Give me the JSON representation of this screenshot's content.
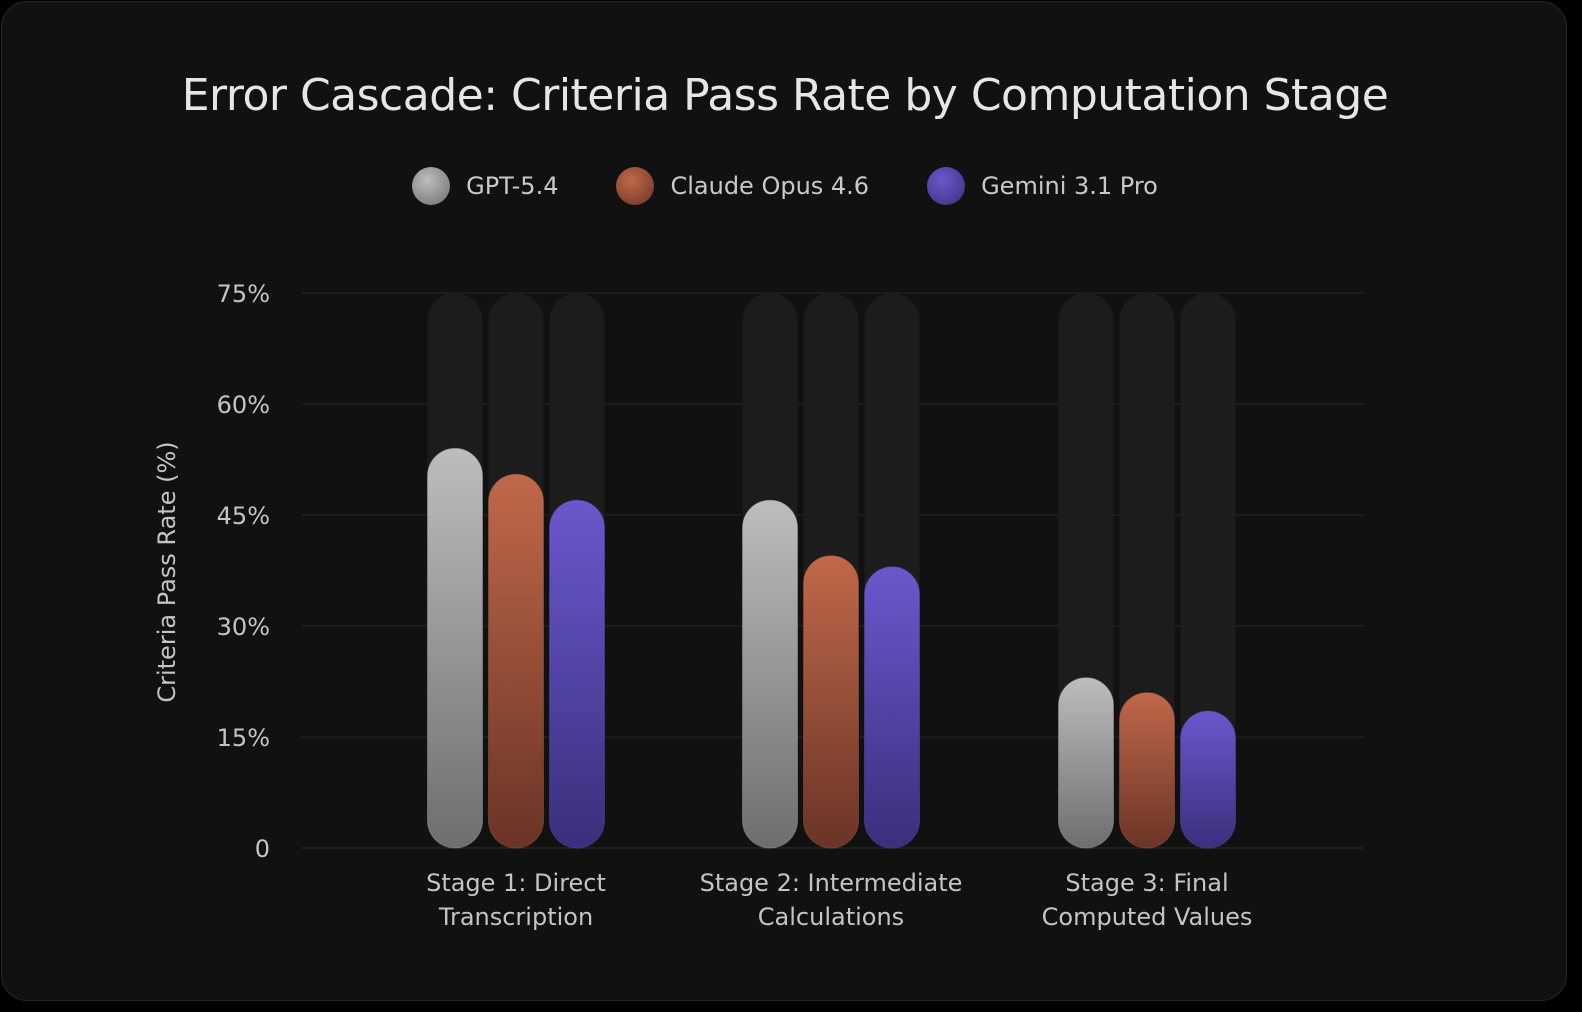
{
  "chart_data": {
    "type": "bar",
    "title": "Error Cascade: Criteria Pass Rate by Computation Stage",
    "xlabel": "",
    "ylabel": "Criteria Pass Rate (%)",
    "ylim": [
      0,
      75
    ],
    "yticks": [
      0,
      15,
      30,
      45,
      60,
      75
    ],
    "ytick_labels": [
      "0",
      "15%",
      "30%",
      "45%",
      "60%",
      "75%"
    ],
    "grid": true,
    "legend_position": "top-center",
    "categories": [
      [
        "Stage 1: Direct",
        "Transcription"
      ],
      [
        "Stage 2: Intermediate",
        "Calculations"
      ],
      [
        "Stage 3: Final",
        "Computed Values"
      ]
    ],
    "series": [
      {
        "name": "GPT-5.4",
        "values": [
          54,
          47,
          23
        ],
        "color": "#bdbdbd",
        "color_dark": "#6e6e6e"
      },
      {
        "name": "Claude Opus 4.6",
        "values": [
          50.5,
          39.5,
          21
        ],
        "color": "#c0684a",
        "color_dark": "#6a3426"
      },
      {
        "name": "Gemini 3.1 Pro",
        "values": [
          47,
          38,
          18.5
        ],
        "color": "#6a58cc",
        "color_dark": "#3a2f7c"
      }
    ]
  }
}
